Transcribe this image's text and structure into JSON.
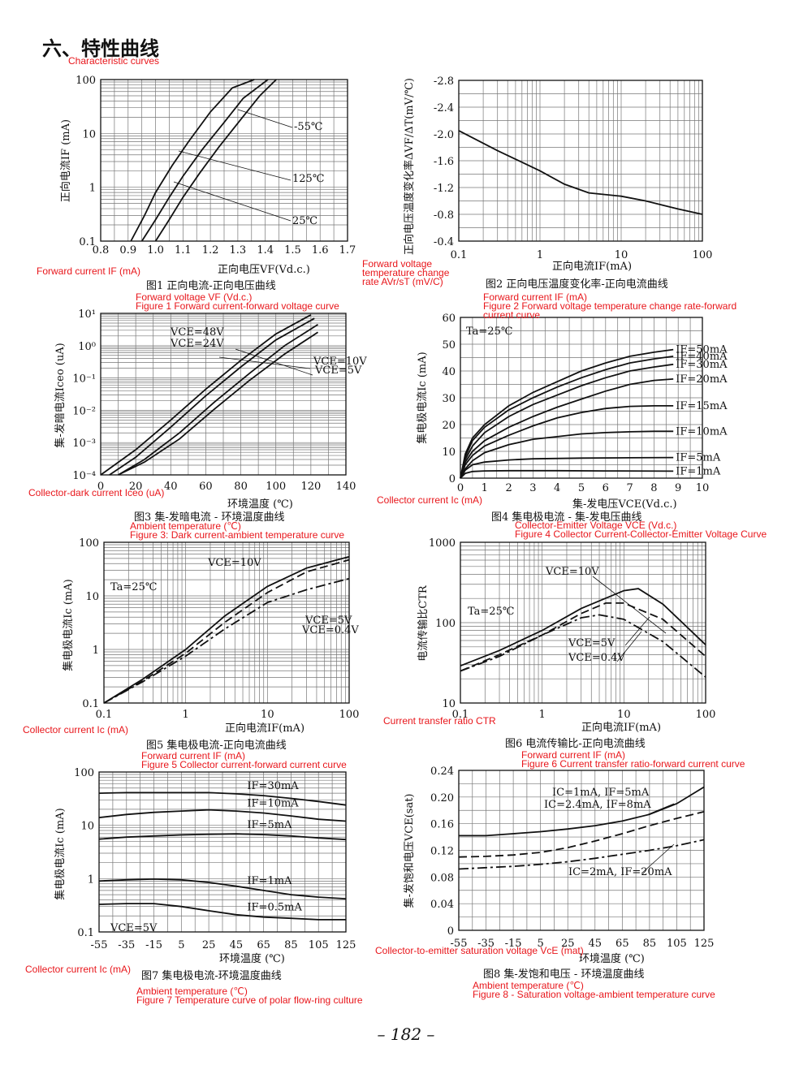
{
  "section": {
    "title": "六、特性曲线",
    "title_en": "Characteristic curves"
  },
  "page_number": "– 182 –",
  "chart_data": [
    {
      "id": "fig1",
      "type": "line",
      "title": "图1 正向电流-正向电压曲线",
      "en_ylabel": "Forward current IF (mA)",
      "en_xlabel": "Forward voltage VF (Vd.c.)",
      "en_title": "Figure 1 Forward current-forward voltage curve",
      "ylabel": "正向电流IF (mA)",
      "xlabel": "正向电压VF(Vd.c.)",
      "xlim": [
        0.8,
        1.7
      ],
      "ylim": [
        0.1,
        100
      ],
      "yscale": "log",
      "xticks": [
        "0.8",
        "0.9",
        "1.0",
        "1.1",
        "1.2",
        "1.3",
        "1.4",
        "1.5",
        "1.6",
        "1.7"
      ],
      "yticks": [
        "0.1",
        "1",
        "10",
        "100"
      ],
      "annotations": [
        "-55℃",
        "125℃",
        "25℃"
      ],
      "series": [
        {
          "name": "125℃",
          "x": [
            0.91,
            0.96,
            1.0,
            1.06,
            1.12,
            1.2,
            1.28,
            1.36
          ],
          "y": [
            0.1,
            0.3,
            0.8,
            2.5,
            7,
            25,
            70,
            100
          ]
        },
        {
          "name": "25℃",
          "x": [
            0.95,
            1.0,
            1.05,
            1.1,
            1.17,
            1.25,
            1.32,
            1.41
          ],
          "y": [
            0.1,
            0.25,
            0.65,
            1.6,
            5,
            16,
            45,
            100
          ]
        },
        {
          "name": "-55℃",
          "x": [
            1.0,
            1.05,
            1.1,
            1.16,
            1.23,
            1.31,
            1.38,
            1.44
          ],
          "y": [
            0.1,
            0.25,
            0.65,
            1.8,
            5.5,
            18,
            50,
            100
          ]
        }
      ]
    },
    {
      "id": "fig2",
      "type": "line",
      "title": "图2 正向电压温度变化率-正向电流曲线",
      "en_ylabel": "Forward voltage temperature change rate AVr/sT (mV/C)",
      "en_xlabel": "Forward current IF (mA)",
      "en_title": "Figure 2 Forward voltage temperature change rate-forward current curve",
      "ylabel": "正向电压温度变化率ΔVF/ΔT(mV/℃)",
      "xlabel": "正向电流IF(mA)",
      "xlim": [
        0.1,
        100
      ],
      "xscale": "log",
      "ylim": [
        -0.4,
        -2.8
      ],
      "xticks": [
        "0.1",
        "1",
        "10",
        "100"
      ],
      "yticks": [
        "-0.4",
        "-0.8",
        "-1.2",
        "-1.6",
        "-2.0",
        "-2.4",
        "-2.8"
      ],
      "series": [
        {
          "name": "",
          "x": [
            0.1,
            0.3,
            1,
            2,
            4,
            10,
            20,
            50,
            100
          ],
          "y": [
            -2.05,
            -1.75,
            -1.45,
            -1.25,
            -1.12,
            -1.07,
            -1.0,
            -0.88,
            -0.8
          ]
        }
      ]
    },
    {
      "id": "fig3",
      "type": "line",
      "title": "图3 集-发暗电流 - 环境温度曲线",
      "en_ylabel": "Collector-dark current Iceo (uA)",
      "en_xlabel": "Ambient temperature (℃)",
      "en_title": "Figure 3: Dark current-ambient temperature curve",
      "ylabel": "集-发暗电流Iceo (uA)",
      "xlabel": "环境温度 (℃)",
      "xlim": [
        0,
        140
      ],
      "ylim": [
        0.0001,
        10
      ],
      "yscale": "log",
      "xticks": [
        "0",
        "20",
        "40",
        "60",
        "80",
        "100",
        "120",
        "140"
      ],
      "yticks": [
        "10⁻⁴",
        "10⁻³",
        "10⁻²",
        "10⁻¹",
        "10⁰",
        "10¹"
      ],
      "annotations": [
        "VCE=48V",
        "VCE=24V",
        "VCE=10V",
        "VCE=5V"
      ],
      "series": [
        {
          "name": "VCE=48V",
          "x": [
            0,
            20,
            40,
            60,
            80,
            100,
            120
          ],
          "y": [
            0.0001,
            0.0006,
            0.005,
            0.045,
            0.35,
            2.3,
            9
          ]
        },
        {
          "name": "VCE=24V",
          "x": [
            5,
            20,
            40,
            60,
            80,
            100,
            122
          ],
          "y": [
            0.0001,
            0.00035,
            0.003,
            0.028,
            0.22,
            1.5,
            7
          ]
        },
        {
          "name": "VCE=10V",
          "x": [
            10,
            25,
            45,
            65,
            85,
            105,
            124
          ],
          "y": [
            0.0001,
            0.0003,
            0.002,
            0.018,
            0.14,
            1,
            4.5
          ]
        },
        {
          "name": "VCE=5V",
          "x": [
            10,
            25,
            45,
            65,
            85,
            105,
            124
          ],
          "y": [
            0.0001,
            0.00025,
            0.0013,
            0.011,
            0.085,
            0.55,
            2.6
          ]
        }
      ]
    },
    {
      "id": "fig4",
      "type": "line",
      "title": "图4 集电极电流 - 集-发电压曲线",
      "en_ylabel": "Collector current Ic (mA)",
      "en_xlabel": "Collector-Emitter Voltage VCE (Vd.c.)",
      "en_title": "Figure 4 Collector Current-Collector-Emitter Voltage Curve",
      "ylabel": "集电极电流Ic (mA)",
      "xlabel": "集-发电压VCE(Vd.c.)",
      "xlim": [
        0,
        10
      ],
      "ylim": [
        0,
        60
      ],
      "xticks": [
        "0",
        "1",
        "2",
        "3",
        "4",
        "5",
        "6",
        "7",
        "8",
        "9",
        "10"
      ],
      "yticks": [
        "0",
        "10",
        "20",
        "30",
        "40",
        "50",
        "60"
      ],
      "annotations": [
        "Ta=25℃"
      ],
      "series": [
        {
          "name": "IF=50mA",
          "x": [
            0,
            0.2,
            0.5,
            1,
            2,
            3,
            4,
            5,
            6,
            7,
            8,
            8.8
          ],
          "y": [
            0,
            9,
            15,
            20,
            27,
            32,
            36,
            40,
            43,
            45.5,
            47,
            48
          ]
        },
        {
          "name": "IF=40mA",
          "x": [
            0,
            0.2,
            0.5,
            1,
            2,
            3,
            4,
            5,
            6,
            7,
            8,
            8.8
          ],
          "y": [
            0,
            8,
            14,
            19,
            25.5,
            30,
            34,
            37.5,
            40.5,
            43,
            44.5,
            45.5
          ]
        },
        {
          "name": "IF=30mA",
          "x": [
            0,
            0.2,
            0.5,
            1,
            2,
            3,
            4,
            5,
            6,
            7,
            8,
            8.8
          ],
          "y": [
            0,
            7,
            12,
            17,
            23,
            27.5,
            31,
            34.5,
            37.5,
            40,
            41.5,
            42.5
          ]
        },
        {
          "name": "IF=20mA",
          "x": [
            0,
            0.2,
            0.5,
            1,
            2,
            3,
            4,
            5,
            6,
            7,
            8,
            8.8
          ],
          "y": [
            0,
            6,
            10,
            14,
            19,
            23,
            26.5,
            29.5,
            32.5,
            35,
            36.5,
            37
          ]
        },
        {
          "name": "IF=15mA",
          "x": [
            0,
            0.2,
            0.5,
            1,
            2,
            3,
            4,
            5,
            6,
            7,
            8,
            8.8
          ],
          "y": [
            0,
            5,
            8.5,
            12,
            16,
            19.5,
            22.5,
            24.5,
            26,
            26.8,
            27,
            27
          ]
        },
        {
          "name": "IF=10mA",
          "x": [
            0,
            0.2,
            0.5,
            1,
            2,
            3,
            4,
            5,
            6,
            7,
            8,
            8.8
          ],
          "y": [
            0,
            3.5,
            6.5,
            9.5,
            12.5,
            14.5,
            15.5,
            16.5,
            17,
            17.3,
            17.5,
            17.5
          ]
        },
        {
          "name": "IF=5mA",
          "x": [
            0,
            0.2,
            0.5,
            1,
            2,
            3,
            5,
            7,
            8.8
          ],
          "y": [
            0,
            3,
            5,
            6,
            6.8,
            7.2,
            7.5,
            7.6,
            7.7
          ]
        },
        {
          "name": "IF=1mA",
          "x": [
            0,
            0.2,
            0.5,
            1,
            2,
            4,
            6,
            8.8
          ],
          "y": [
            0,
            1.8,
            2.5,
            2.7,
            2.8,
            2.8,
            2.7,
            2.6
          ]
        }
      ]
    },
    {
      "id": "fig5",
      "type": "line",
      "title": "图5 集电极电流-正向电流曲线",
      "en_ylabel": "Collector current Ic (mA)",
      "en_xlabel": "Forward current IF (mA)",
      "en_title": "Figure 5 Collector current-forward current curve",
      "ylabel": "集电极电流Ic (mA)",
      "xlabel": "正向电流IF(mA)",
      "xlim": [
        0.1,
        100
      ],
      "ylim": [
        0.1,
        100
      ],
      "xscale": "log",
      "yscale": "log",
      "xticks": [
        "0.1",
        "1",
        "10",
        "100"
      ],
      "yticks": [
        "0.1",
        "1",
        "10",
        "100"
      ],
      "annotations": [
        "Ta=25℃",
        "VCE=10V",
        "VCE=5V",
        "VCE=0.4V"
      ],
      "series": [
        {
          "name": "VCE=10V",
          "x": [
            0.1,
            0.3,
            1,
            3,
            10,
            30,
            100
          ],
          "y": [
            0.1,
            0.28,
            1,
            4.2,
            15,
            33,
            54
          ]
        },
        {
          "name": "VCE=5V",
          "x": [
            0.1,
            0.3,
            1,
            3,
            10,
            30,
            100
          ],
          "y": [
            0.1,
            0.26,
            0.85,
            3.2,
            11.5,
            28,
            47
          ]
        },
        {
          "name": "VCE=0.4V",
          "x": [
            0.1,
            0.3,
            1,
            3,
            10,
            30,
            100
          ],
          "y": [
            0.1,
            0.25,
            0.75,
            2.4,
            7.5,
            13,
            21
          ]
        }
      ]
    },
    {
      "id": "fig6",
      "type": "line",
      "title": "图6 电流传输比-正向电流曲线",
      "en_ylabel": "Current transfer ratio CTR",
      "en_xlabel": "Forward current IF (mA)",
      "en_title": "Figure 6 Current transfer ratio-forward current curve",
      "ylabel": "电流传输比CTR",
      "xlabel": "正向电流IF(mA)",
      "xlim": [
        0.1,
        100
      ],
      "ylim": [
        10,
        1000
      ],
      "xscale": "log",
      "yscale": "log",
      "xticks": [
        "0.1",
        "1",
        "10",
        "100"
      ],
      "yticks": [
        "10",
        "100",
        "1000"
      ],
      "annotations": [
        "Ta=25℃",
        "VCE=10V",
        "VCE=5V",
        "VCE=0.4V"
      ],
      "series": [
        {
          "name": "VCE=10V",
          "x": [
            0.1,
            0.3,
            1,
            3,
            10,
            15,
            30,
            100
          ],
          "y": [
            29,
            45,
            80,
            150,
            250,
            265,
            170,
            53
          ]
        },
        {
          "name": "VCE=5V",
          "x": [
            0.1,
            0.3,
            1,
            3,
            6,
            10,
            30,
            100
          ],
          "y": [
            25,
            40,
            70,
            130,
            175,
            175,
            110,
            38
          ]
        },
        {
          "name": "VCE=0.4V",
          "x": [
            0.1,
            0.3,
            1,
            3,
            5,
            10,
            30,
            100
          ],
          "y": [
            25,
            38,
            70,
            115,
            125,
            110,
            58,
            21
          ]
        }
      ]
    },
    {
      "id": "fig7",
      "type": "line",
      "title": "图7 集电极电流-环境温度曲线",
      "en_ylabel": "Collector current Ic (mA)",
      "en_xlabel": "Ambient temperature (℃)",
      "en_title": "Figure 7 Temperature curve of polar flow-ring culture",
      "ylabel": "集电极电流Ic (mA)",
      "xlabel": "环境温度 (℃)",
      "xlim": [
        -55,
        125
      ],
      "ylim": [
        0.1,
        100
      ],
      "yscale": "log",
      "xticks": [
        "-55",
        "-35",
        "-15",
        "5",
        "25",
        "45",
        "65",
        "85",
        "105",
        "125"
      ],
      "yticks": [
        "0.1",
        "1",
        "10",
        "100"
      ],
      "annotations": [
        "VCE=5V"
      ],
      "series": [
        {
          "name": "IF=30mA",
          "x": [
            -55,
            -35,
            -15,
            5,
            25,
            45,
            65,
            85,
            105,
            125
          ],
          "y": [
            40,
            41,
            41,
            41,
            41,
            39,
            36,
            32,
            28,
            24
          ]
        },
        {
          "name": "IF=10mA",
          "x": [
            -55,
            -35,
            -15,
            5,
            25,
            45,
            65,
            85,
            105,
            125
          ],
          "y": [
            14,
            16,
            17.5,
            18.5,
            19.5,
            18.5,
            17,
            15,
            13,
            12
          ]
        },
        {
          "name": "IF=5mA",
          "x": [
            -55,
            -35,
            -15,
            5,
            25,
            45,
            65,
            85,
            105,
            125
          ],
          "y": [
            5.5,
            6,
            6.3,
            6.6,
            6.8,
            6.9,
            6.7,
            6.3,
            5.8,
            5.4
          ]
        },
        {
          "name": "IF=1mA",
          "x": [
            -55,
            -35,
            -15,
            5,
            25,
            45,
            65,
            85,
            105,
            125
          ],
          "y": [
            0.9,
            0.95,
            0.98,
            0.95,
            0.85,
            0.72,
            0.6,
            0.5,
            0.45,
            0.42
          ]
        },
        {
          "name": "IF=0.5mA",
          "x": [
            -55,
            -35,
            -15,
            5,
            25,
            45,
            65,
            85,
            105,
            125
          ],
          "y": [
            0.33,
            0.34,
            0.34,
            0.3,
            0.25,
            0.21,
            0.19,
            0.18,
            0.17,
            0.17
          ]
        }
      ]
    },
    {
      "id": "fig8",
      "type": "line",
      "title": "图8 集-发饱和电压 - 环境温度曲线",
      "en_ylabel": "Collector-to-emitter saturation voltage VcE (mat)",
      "en_xlabel": "Ambient temperature (℃)",
      "en_title": "Figure 8 - Saturation voltage-ambient temperature curve",
      "ylabel": "集-发饱和电压VCE(sat)",
      "xlabel": "环境温度 (℃)",
      "xlim": [
        -55,
        125
      ],
      "ylim": [
        0,
        0.24
      ],
      "xticks": [
        "-55",
        "-35",
        "-15",
        "5",
        "25",
        "45",
        "65",
        "85",
        "105",
        "125"
      ],
      "yticks": [
        "0",
        "0.04",
        "0.08",
        "0.12",
        "0.16",
        "0.20",
        "0.24"
      ],
      "series": [
        {
          "name": "IC=1mA, IF=5mA",
          "x": [
            -55,
            -35,
            -15,
            5,
            25,
            45,
            65,
            85,
            105,
            125
          ],
          "y": [
            0.142,
            0.142,
            0.145,
            0.148,
            0.152,
            0.157,
            0.164,
            0.174,
            0.19,
            0.215
          ]
        },
        {
          "name": "IC=2.4mA, IF=8mA",
          "x": [
            -55,
            -35,
            -15,
            5,
            25,
            45,
            65,
            85,
            105,
            125
          ],
          "y": [
            0.11,
            0.111,
            0.113,
            0.117,
            0.124,
            0.134,
            0.145,
            0.157,
            0.168,
            0.178
          ]
        },
        {
          "name": "IC=2mA, IF=20mA",
          "x": [
            -55,
            -35,
            -15,
            5,
            25,
            45,
            65,
            85,
            105,
            125
          ],
          "y": [
            0.092,
            0.094,
            0.096,
            0.099,
            0.103,
            0.108,
            0.114,
            0.12,
            0.127,
            0.136
          ]
        }
      ]
    }
  ]
}
